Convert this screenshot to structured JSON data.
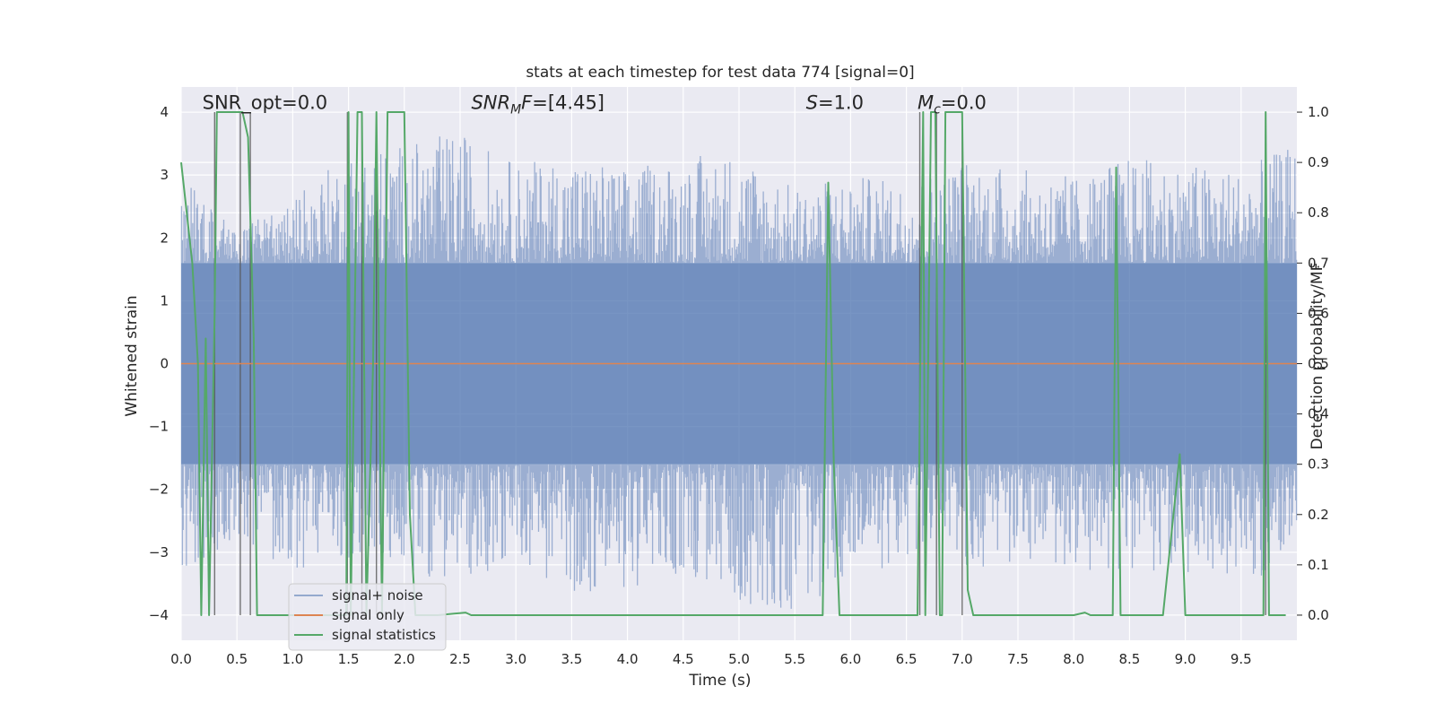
{
  "chart_data": {
    "type": "line",
    "title": "stats at each timestep for test data 774 [signal=0]",
    "xlabel": "Time (s)",
    "ylabel_left": "Whitened strain",
    "ylabel_right": "Detection probability/MF",
    "xlim": [
      0.0,
      10.0
    ],
    "ylim_left": [
      -4.4,
      4.4
    ],
    "ylim_right": [
      -0.05,
      1.05
    ],
    "xticks": [
      0.0,
      0.5,
      1.0,
      1.5,
      2.0,
      2.5,
      3.0,
      3.5,
      4.0,
      4.5,
      5.0,
      5.5,
      6.0,
      6.5,
      7.0,
      7.5,
      8.0,
      8.5,
      9.0,
      9.5
    ],
    "xtick_labels": [
      "0.0",
      "0.5",
      "1.0",
      "1.5",
      "2.0",
      "2.5",
      "3.0",
      "3.5",
      "4.0",
      "4.5",
      "5.0",
      "5.5",
      "6.0",
      "6.5",
      "7.0",
      "7.5",
      "8.0",
      "8.5",
      "9.0",
      "9.5"
    ],
    "yticks_left": [
      -4,
      -3,
      -2,
      -1,
      0,
      1,
      2,
      3,
      4
    ],
    "ytick_labels_left": [
      "−4",
      "−3",
      "−2",
      "−1",
      "0",
      "1",
      "2",
      "3",
      "4"
    ],
    "yticks_right": [
      0.0,
      0.1,
      0.2,
      0.3,
      0.4,
      0.5,
      0.6,
      0.7,
      0.8,
      0.9,
      1.0
    ],
    "ytick_labels_right": [
      "0.0",
      "0.1",
      "0.2",
      "0.3",
      "0.4",
      "0.5",
      "0.6",
      "0.7",
      "0.8",
      "0.9",
      "1.0"
    ],
    "grid": true,
    "legend_position": "lower-left",
    "annotations": [
      {
        "text": "SNR_opt=0.0",
        "x": 0.19,
        "y": 4.05
      },
      {
        "text": "SNR_MF=[4.45]",
        "x": 2.6,
        "y": 4.05
      },
      {
        "text": "S=1.0",
        "x": 5.6,
        "y": 4.05
      },
      {
        "text": "M_c=0.0",
        "x": 6.6,
        "y": 4.05
      }
    ],
    "series": [
      {
        "name": "signal+ noise",
        "color": "#4c72b0",
        "opacity": 0.5,
        "axis": "left",
        "envelope": {
          "x": [
            0.0,
            0.5,
            1.0,
            1.5,
            2.0,
            2.5,
            3.0,
            3.5,
            4.0,
            4.5,
            5.0,
            5.5,
            6.0,
            6.5,
            7.0,
            7.5,
            8.0,
            8.5,
            9.0,
            9.5,
            10.0
          ],
          "upper": [
            3.2,
            2.2,
            2.6,
            3.4,
            3.5,
            3.7,
            3.2,
            3.3,
            3.1,
            3.3,
            3.4,
            2.8,
            3.0,
            2.9,
            3.3,
            3.1,
            3.0,
            3.3,
            3.2,
            3.1,
            3.5
          ],
          "lower": [
            -3.4,
            -2.8,
            -3.3,
            -3.1,
            -3.3,
            -3.5,
            -3.1,
            -3.7,
            -3.6,
            -3.4,
            -3.8,
            -4.0,
            -3.4,
            -3.2,
            -3.3,
            -3.2,
            -3.3,
            -3.4,
            -3.3,
            -3.6,
            -3.1
          ],
          "dense_band": [
            -1.6,
            1.6
          ]
        }
      },
      {
        "name": "signal only",
        "color": "#dd8452",
        "axis": "left",
        "x": [
          0.0,
          10.0
        ],
        "y": [
          0.0,
          0.0
        ]
      },
      {
        "name": "signal statistics",
        "color": "#55a868",
        "axis": "right",
        "x": [
          0.0,
          0.1,
          0.15,
          0.18,
          0.22,
          0.25,
          0.3,
          0.32,
          0.35,
          0.38,
          0.5,
          0.55,
          0.6,
          0.65,
          0.68,
          1.0,
          1.48,
          1.5,
          1.52,
          1.58,
          1.62,
          1.66,
          1.72,
          1.75,
          1.8,
          1.85,
          2.0,
          2.05,
          2.1,
          2.15,
          2.3,
          2.55,
          2.6,
          2.8,
          5.7,
          5.75,
          5.8,
          5.85,
          5.9,
          6.5,
          6.6,
          6.65,
          6.67,
          6.72,
          6.76,
          6.8,
          6.82,
          6.85,
          6.95,
          7.0,
          7.05,
          7.1,
          8.0,
          8.1,
          8.15,
          8.3,
          8.35,
          8.38,
          8.42,
          8.5,
          8.7,
          8.8,
          8.95,
          9.0,
          9.05,
          9.65,
          9.7,
          9.72,
          9.75,
          9.8,
          9.9
        ],
        "y": [
          0.9,
          0.7,
          0.5,
          0.0,
          0.55,
          0.0,
          0.6,
          1.0,
          1.0,
          1.0,
          1.0,
          1.0,
          0.95,
          0.55,
          0.0,
          0.0,
          0.0,
          1.0,
          0.0,
          1.0,
          1.0,
          0.0,
          0.5,
          1.0,
          0.0,
          1.0,
          1.0,
          0.2,
          0.0,
          0.0,
          0.0,
          0.005,
          0.0,
          0.0,
          0.0,
          0.0,
          0.86,
          0.3,
          0.0,
          0.0,
          0.0,
          1.0,
          0.0,
          1.0,
          1.0,
          0.0,
          0.0,
          1.0,
          1.0,
          1.0,
          0.05,
          0.0,
          0.0,
          0.005,
          0.0,
          0.0,
          0.0,
          0.89,
          0.0,
          0.0,
          0.0,
          0.0,
          0.32,
          0.0,
          0.0,
          0.0,
          0.0,
          1.0,
          0.0,
          0.0,
          0.0
        ]
      }
    ],
    "vertical_markers_x": [
      0.3,
      0.53,
      0.62,
      1.49,
      1.62,
      1.75,
      6.62,
      6.77,
      7.0,
      9.72
    ]
  }
}
